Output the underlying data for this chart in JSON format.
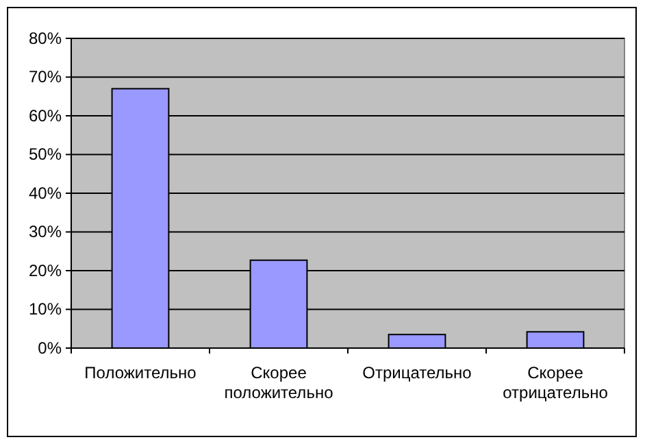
{
  "chart_data": {
    "type": "bar",
    "categories": [
      "Положительно",
      "Скорее положительно",
      "Отрицательно",
      "Скорее отрицательно"
    ],
    "values": [
      67,
      22.7,
      3.5,
      4.2
    ],
    "color": "#9999ff",
    "ylim": [
      0,
      80
    ],
    "yticks": [
      {
        "value": 0,
        "label": "0%"
      },
      {
        "value": 10,
        "label": "10%"
      },
      {
        "value": 20,
        "label": "20%"
      },
      {
        "value": 30,
        "label": "30%"
      },
      {
        "value": 40,
        "label": "40%"
      },
      {
        "value": 50,
        "label": "50%"
      },
      {
        "value": 60,
        "label": "60%"
      },
      {
        "value": 70,
        "label": "70%"
      },
      {
        "value": 80,
        "label": "80%"
      }
    ],
    "grid": "y"
  }
}
